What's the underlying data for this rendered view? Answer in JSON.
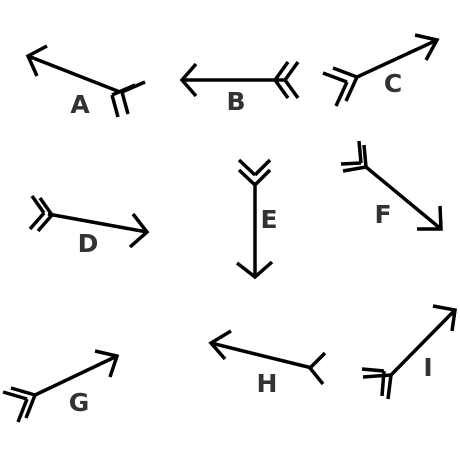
{
  "style": {
    "stroke": "#000000",
    "label_color": "#333333"
  },
  "arrows": [
    {
      "label": "A"
    },
    {
      "label": "B"
    },
    {
      "label": "C"
    },
    {
      "label": "D"
    },
    {
      "label": "E"
    },
    {
      "label": "F"
    },
    {
      "label": "G"
    },
    {
      "label": "H"
    },
    {
      "label": "I"
    }
  ]
}
